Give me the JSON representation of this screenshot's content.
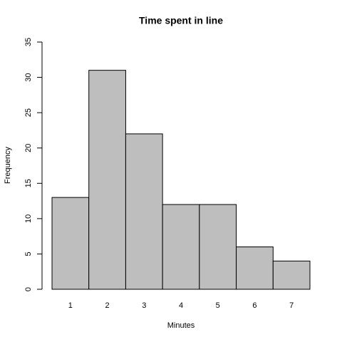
{
  "chart_data": {
    "type": "bar",
    "title": "Time spent in line",
    "x_label": "Minutes",
    "y_label": "Frequency",
    "categories": [
      "1",
      "2",
      "3",
      "4",
      "5",
      "6",
      "7"
    ],
    "values": [
      13,
      31,
      22,
      12,
      12,
      6,
      4
    ],
    "color": "#bebebe",
    "ylim": [
      0,
      35
    ],
    "yticks": [
      0,
      5,
      10,
      15,
      20,
      25,
      30,
      35
    ]
  }
}
